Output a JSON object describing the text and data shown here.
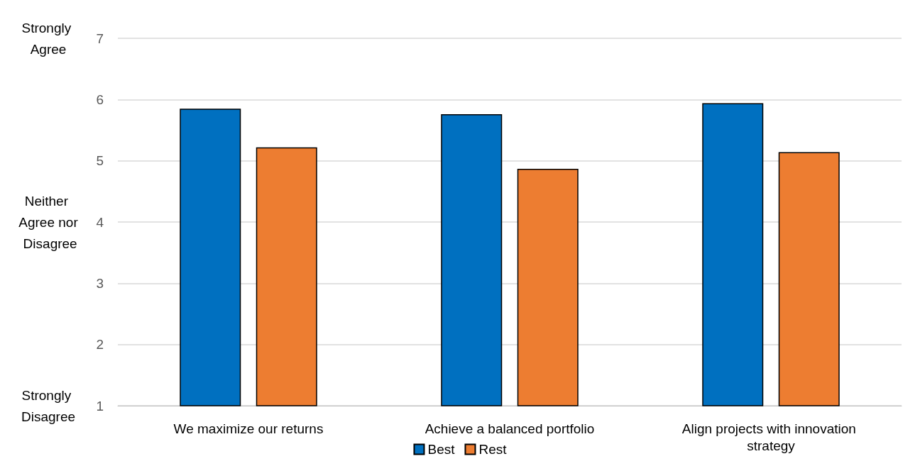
{
  "chart_data": {
    "type": "bar",
    "categories": [
      "We maximize our returns",
      "Achieve a balanced portfolio",
      "Align projects with innovation strategy"
    ],
    "series": [
      {
        "name": "Best",
        "color": "#0070c0",
        "values": [
          5.85,
          5.76,
          5.94
        ]
      },
      {
        "name": "Rest",
        "color": "#ed7d31",
        "values": [
          5.22,
          4.87,
          5.14
        ]
      }
    ],
    "ylim": [
      1,
      7
    ],
    "yticks": [
      1,
      2,
      3,
      4,
      5,
      6,
      7
    ],
    "grid": "y",
    "legend": "bottom",
    "annotations": [
      "Strongly Agree",
      "Neither Agree nor Disagree",
      "Strongly Disagree"
    ]
  }
}
